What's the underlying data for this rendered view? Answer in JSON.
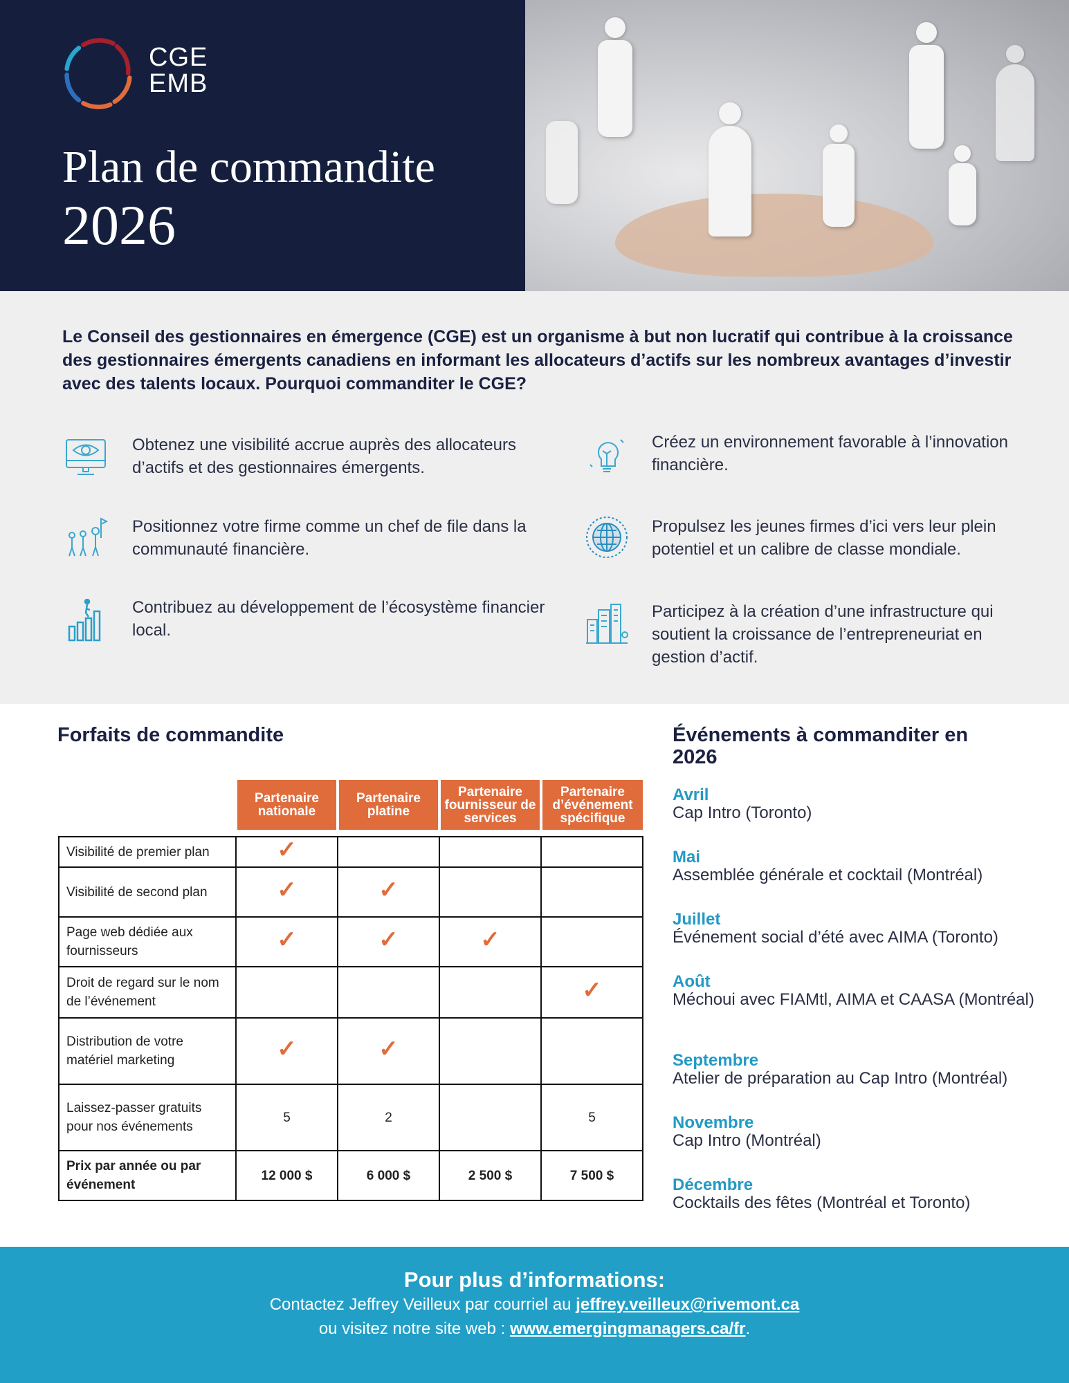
{
  "header": {
    "logo_line1": "CGE",
    "logo_line2": "EMB",
    "title_line1": "Plan de commandite",
    "title_line2": "2026"
  },
  "intro": "Le Conseil des gestionnaires en émergence (CGE) est un organisme à but non lucratif qui contribue à la croissance des gestionnaires émergents canadiens en informant les allocateurs d’actifs sur les nombreux avantages d’investir avec des talents locaux. Pourquoi commanditer le CGE?",
  "benefits": [
    {
      "icon": "monitor-eye-icon",
      "text": "Obtenez une visibilité accrue auprès des allocateurs d’actifs et des gestionnaires émergents."
    },
    {
      "icon": "lightbulb-icon",
      "text": "Créez un environnement favorable à l’innovation financière."
    },
    {
      "icon": "team-leader-flag-icon",
      "text": "Positionnez votre firme comme un chef de file dans la communauté financière."
    },
    {
      "icon": "globe-icon",
      "text": "Propulsez les jeunes firmes d’ici vers leur plein potentiel et un calibre de classe mondiale."
    },
    {
      "icon": "growth-bars-icon",
      "text": "Contribuez au développement de l’écosystème financier local."
    },
    {
      "icon": "city-buildings-icon",
      "text": "Participez à la création d’une infrastructure qui soutient la croissance de l’entrepreneuriat en gestion d’actif."
    }
  ],
  "packages": {
    "title": "Forfaits de commandite",
    "columns": [
      "Partenaire nationale",
      "Partenaire platine",
      "Partenaire fournisseur de services",
      "Partenaire d’événement spécifique"
    ],
    "rows": [
      {
        "label": "Visibilité de premier plan",
        "cells": [
          "✓",
          "",
          "",
          ""
        ]
      },
      {
        "label": "Visibilité de second plan",
        "cells": [
          "✓",
          "✓",
          "",
          ""
        ]
      },
      {
        "label": "Page web dédiée aux fournisseurs",
        "cells": [
          "✓",
          "✓",
          "✓",
          ""
        ]
      },
      {
        "label": "Droit de regard sur le nom de l’événement",
        "cells": [
          "",
          "",
          "",
          "✓"
        ]
      },
      {
        "label": "Distribution de votre matériel marketing",
        "cells": [
          "✓",
          "✓",
          "",
          ""
        ]
      },
      {
        "label": "Laissez-passer gratuits pour nos événements",
        "cells": [
          "5",
          "2",
          "",
          "5"
        ]
      },
      {
        "label": "Prix par année ou par événement",
        "cells": [
          "12 000 $",
          "6 000 $",
          "2 500 $",
          "7 500 $"
        ],
        "bold": true
      }
    ],
    "accent": "#e06c3c"
  },
  "events": {
    "title": "Événements à commanditer en 2026",
    "items": [
      {
        "month": "Avril",
        "desc": "Cap Intro (Toronto)"
      },
      {
        "month": "Mai",
        "desc": "Assemblée générale et cocktail (Montréal)"
      },
      {
        "month": "Juillet",
        "desc": "Événement social d’été avec AIMA (Toronto)"
      },
      {
        "month": "Août",
        "desc": "Méchoui avec FIAMtl, AIMA et CAASA (Montréal)"
      },
      {
        "month": "Septembre",
        "desc": "Atelier de préparation au Cap Intro (Montréal)"
      },
      {
        "month": "Novembre",
        "desc": "Cap Intro (Montréal)"
      },
      {
        "month": "Décembre",
        "desc": "Cocktails des fêtes (Montréal et Toronto)"
      }
    ]
  },
  "footer": {
    "title": "Pour plus d’informations:",
    "line1_prefix": "Contactez Jeffrey Veilleux par courriel au ",
    "email": "jeffrey.veilleux@rivemont.ca",
    "line2_prefix": "ou visitez notre site web : ",
    "website": "www.emergingmanagers.ca/fr",
    "line2_suffix": "."
  }
}
